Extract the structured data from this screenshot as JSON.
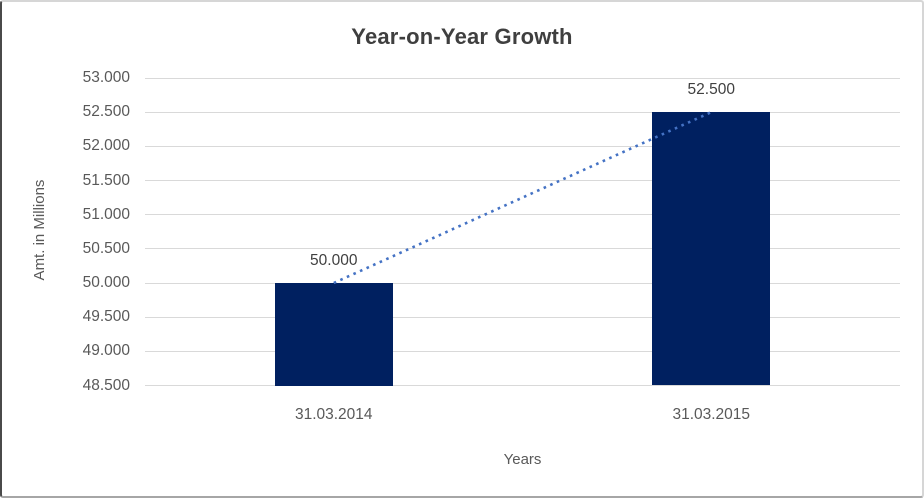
{
  "chart_data": {
    "type": "bar",
    "title": "Year-on-Year Growth",
    "xlabel": "Years",
    "ylabel": "Amt. in Millions",
    "categories": [
      "31.03.2014",
      "31.03.2015"
    ],
    "values": [
      50000,
      52500
    ],
    "value_labels": [
      "50.000",
      "52.500"
    ],
    "series": [
      {
        "name": "Amt. in Millions",
        "values": [
          50000,
          52500
        ]
      }
    ],
    "y_tick_values": [
      53000,
      52500,
      52000,
      51500,
      51000,
      50500,
      50000,
      49500,
      49000,
      48500
    ],
    "y_ticks": [
      "53.000",
      "52.500",
      "52.000",
      "51.500",
      "51.000",
      "50.500",
      "50.000",
      "49.500",
      "49.000",
      "48.500"
    ],
    "ylim": [
      48500,
      53000
    ],
    "grid": true,
    "legend": "none",
    "trendline": {
      "style": "dotted",
      "from": {
        "category": "31.03.2014",
        "value": 50000
      },
      "to": {
        "category": "31.03.2015",
        "value": 52500
      }
    },
    "colors": {
      "bar": "#002060",
      "trendline": "#4472c4",
      "gridline": "#d9d9d9",
      "title_text": "#3f3f3f",
      "axis_text": "#595959",
      "data_label_text": "#404040"
    }
  }
}
